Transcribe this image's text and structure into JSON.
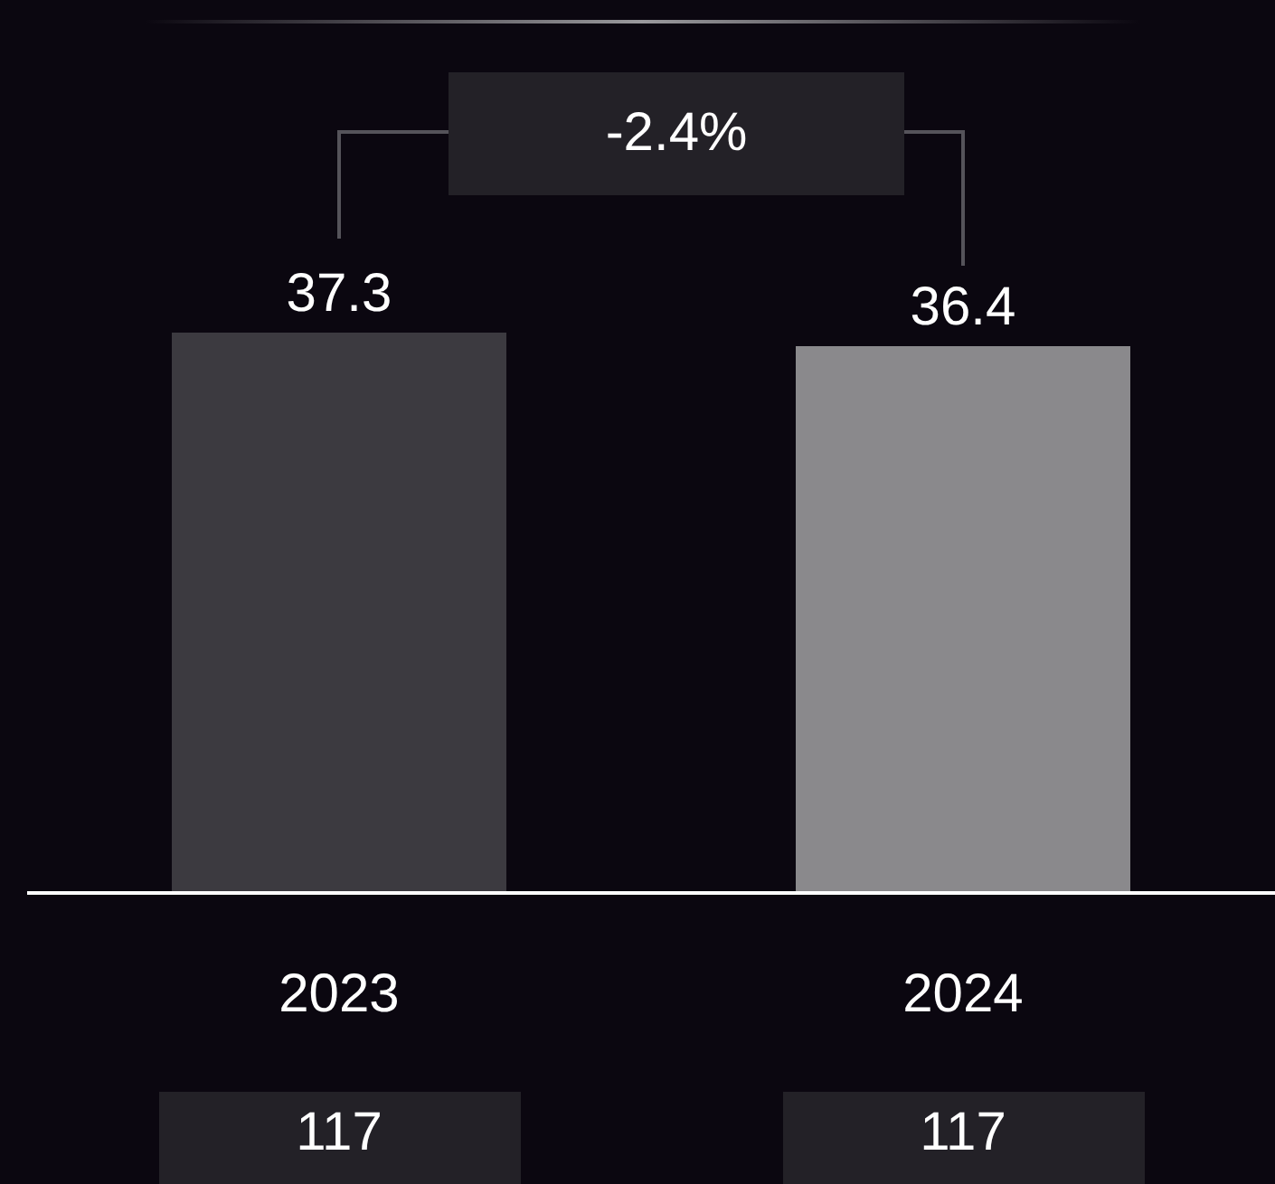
{
  "chart_data": {
    "type": "bar",
    "categories": [
      "2023",
      "2024"
    ],
    "values": [
      37.3,
      36.4
    ],
    "colors": [
      "#3c3a40",
      "#8a898c"
    ],
    "data_labels": true,
    "annotations": [
      "-2.4%",
      "117",
      "117"
    ]
  }
}
